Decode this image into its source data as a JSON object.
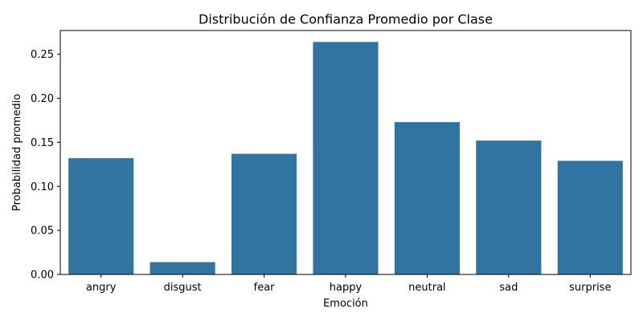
{
  "chart_data": {
    "type": "bar",
    "title": "Distribución de Confianza Promedio por Clase",
    "xlabel": "Emoción",
    "ylabel": "Probabilidad promedio",
    "categories": [
      "angry",
      "disgust",
      "fear",
      "happy",
      "neutral",
      "sad",
      "surprise"
    ],
    "values": [
      0.132,
      0.014,
      0.137,
      0.264,
      0.173,
      0.152,
      0.129
    ],
    "ylim": [
      0,
      0.277
    ],
    "yticks": [
      0.0,
      0.05,
      0.1,
      0.15,
      0.2,
      0.25
    ],
    "ytick_labels": [
      "0.00",
      "0.05",
      "0.10",
      "0.15",
      "0.20",
      "0.25"
    ],
    "bar_color": "#3274a1",
    "grid": false,
    "legend": "none"
  }
}
